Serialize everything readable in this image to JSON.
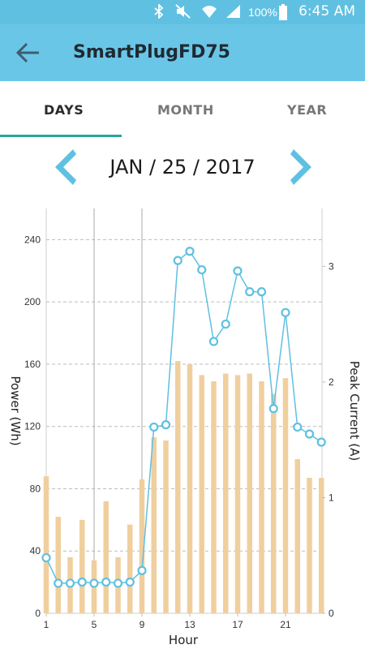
{
  "status_bar": {
    "battery": "100%",
    "time": "6:45 AM",
    "icons": [
      "bluetooth-icon",
      "mute-icon",
      "wifi-icon",
      "signal-icon",
      "battery-icon"
    ]
  },
  "app_bar": {
    "title": "SmartPlugFD75",
    "back_icon": "arrow-left-icon",
    "color": "#6ac6e6"
  },
  "tabs": [
    {
      "label": "DAYS",
      "active": true
    },
    {
      "label": "MONTH",
      "active": false
    },
    {
      "label": "YEAR",
      "active": false
    }
  ],
  "date_nav": {
    "date": "JAN / 25 / 2017",
    "prev_icon": "chevron-left-icon",
    "next_icon": "chevron-right-icon"
  },
  "chart_data": {
    "type": "bar",
    "xlabel": "Hour",
    "ylabel": "Power (Wh)",
    "y2label": "Peak Current (A)",
    "x": [
      1,
      2,
      3,
      4,
      5,
      6,
      7,
      8,
      9,
      10,
      11,
      12,
      13,
      14,
      15,
      16,
      17,
      18,
      19,
      20,
      21,
      22,
      23,
      24
    ],
    "x_ticks": [
      1,
      5,
      9,
      13,
      17,
      21
    ],
    "ylim": [
      0,
      260
    ],
    "yticks": [
      0,
      40,
      80,
      120,
      160,
      200,
      240
    ],
    "y2lim": [
      0,
      3.5
    ],
    "y2ticks": [
      0,
      1,
      2,
      3
    ],
    "vertical_lines": [
      5,
      9
    ],
    "bar_color": "#f0cf9e",
    "line_color": "#5fc0e2",
    "series": [
      {
        "name": "Power (Wh)",
        "kind": "bar",
        "axis": "left",
        "values": [
          88,
          62,
          36,
          60,
          34,
          72,
          36,
          57,
          86,
          113,
          111,
          162,
          160,
          153,
          149,
          154,
          153,
          154,
          149,
          141,
          151,
          99,
          87,
          87
        ]
      },
      {
        "name": "Peak Current (A)",
        "kind": "line",
        "axis": "right",
        "values": [
          0.48,
          0.26,
          0.26,
          0.27,
          0.26,
          0.27,
          0.26,
          0.27,
          0.37,
          1.61,
          1.63,
          3.05,
          3.13,
          2.97,
          2.35,
          2.5,
          2.96,
          2.78,
          2.78,
          1.77,
          2.6,
          1.61,
          1.55,
          1.48
        ]
      }
    ]
  }
}
